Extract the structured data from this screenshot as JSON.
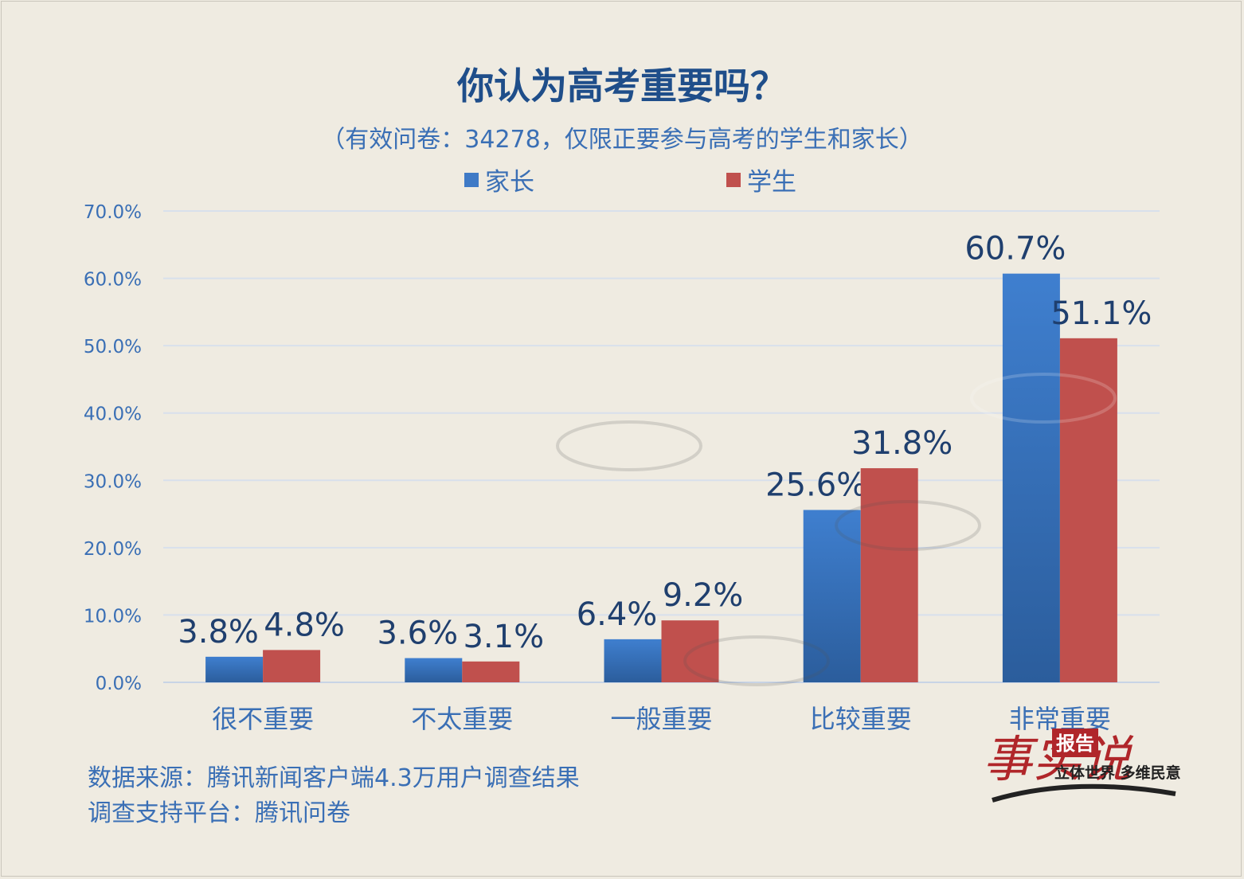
{
  "title": "你认为高考重要吗？",
  "subtitle": "（有效问卷：34278，仅限正要参与高考的学生和家长）",
  "legend": [
    {
      "label": "家长",
      "color": "#3f7ac6"
    },
    {
      "label": "学生",
      "color": "#c0504d"
    }
  ],
  "footer": {
    "source": "数据来源：腾讯新闻客户端4.3万用户调查结果",
    "platform": "调查支持平台：腾讯问卷"
  },
  "logo": {
    "main": "事实说",
    "badge": "报告",
    "slogan": "立体世界 多维民意"
  },
  "chart_data": {
    "type": "bar",
    "categories": [
      "很不重要",
      "不太重要",
      "一般重要",
      "比较重要",
      "非常重要"
    ],
    "series": [
      {
        "name": "家长",
        "values": [
          3.8,
          3.6,
          6.4,
          25.6,
          60.7
        ],
        "labels": [
          "3.8%",
          "3.6%",
          "6.4%",
          "25.6%",
          "60.7%"
        ]
      },
      {
        "name": "学生",
        "values": [
          4.8,
          3.1,
          9.2,
          31.8,
          51.1
        ],
        "labels": [
          "4.8%",
          "3.1%",
          "9.2%",
          "31.8%",
          "51.1%"
        ]
      }
    ],
    "yticks": [
      "0.0%",
      "10.0%",
      "20.0%",
      "30.0%",
      "40.0%",
      "50.0%",
      "60.0%",
      "70.0%"
    ],
    "ylim": [
      0,
      70
    ],
    "grid": true,
    "legend_position": "top"
  }
}
